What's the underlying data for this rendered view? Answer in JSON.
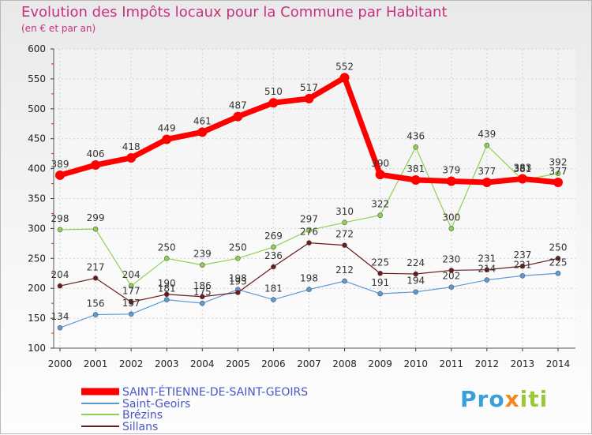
{
  "header": {
    "title": "Evolution des Impôts locaux pour la Commune par Habitant",
    "subtitle": "(en € et par an)"
  },
  "logo": {
    "part1": "Pro",
    "part2": "x",
    "part3": "iti"
  },
  "chart_data": {
    "type": "line",
    "title": "Evolution des Impôts locaux pour la Commune par Habitant",
    "subtitle": "(en € et par an)",
    "xlabel": "",
    "ylabel": "",
    "x": [
      "2000",
      "2001",
      "2002",
      "2003",
      "2004",
      "2005",
      "2006",
      "2007",
      "2008",
      "2009",
      "2010",
      "2011",
      "2012",
      "2013",
      "2014"
    ],
    "ylim": [
      100,
      600
    ],
    "yticks": [
      100,
      150,
      200,
      250,
      300,
      350,
      400,
      450,
      500,
      550,
      600
    ],
    "grid": true,
    "legend": "bottom-left",
    "series": [
      {
        "name": "SAINT-ÉTIENNE-DE-SAINT-GEOIRS",
        "color": "#ff0000",
        "values": [
          389,
          406,
          418,
          449,
          461,
          487,
          510,
          517,
          552,
          390,
          381,
          379,
          377,
          383,
          377
        ],
        "labels": [
          "389",
          "406",
          "418",
          "449",
          "461",
          "487",
          "510",
          "517",
          "552",
          "390",
          "381",
          "379",
          "377",
          "383",
          "377"
        ]
      },
      {
        "name": "Saint-Geoirs",
        "color": "#5b9bd5",
        "values": [
          134,
          156,
          157,
          181,
          175,
          198,
          181,
          198,
          212,
          191,
          194,
          202,
          214,
          221,
          225
        ],
        "labels": [
          "134",
          "156",
          "157",
          "181",
          "175",
          "198",
          "181",
          "198",
          "212",
          "191",
          "194",
          "202",
          "214",
          "221",
          "225"
        ]
      },
      {
        "name": "Brézins",
        "color": "#8fd14f",
        "values": [
          298,
          299,
          204,
          250,
          239,
          250,
          269,
          297,
          310,
          322,
          436,
          300,
          439,
          381,
          392
        ],
        "labels": [
          "298",
          "299",
          "204",
          "250",
          "239",
          "250",
          "269",
          "297",
          "310",
          "322",
          "436",
          "300",
          "439",
          "381",
          "392"
        ]
      },
      {
        "name": "Sillans",
        "color": "#6b1a1a",
        "values": [
          204,
          217,
          177,
          190,
          186,
          193,
          236,
          276,
          272,
          225,
          224,
          230,
          231,
          237,
          250
        ],
        "labels": [
          "204",
          "217",
          "177",
          "190",
          "186",
          "193",
          "236",
          "276",
          "272",
          "225",
          "224",
          "230",
          "231",
          "237",
          "250"
        ]
      }
    ]
  }
}
